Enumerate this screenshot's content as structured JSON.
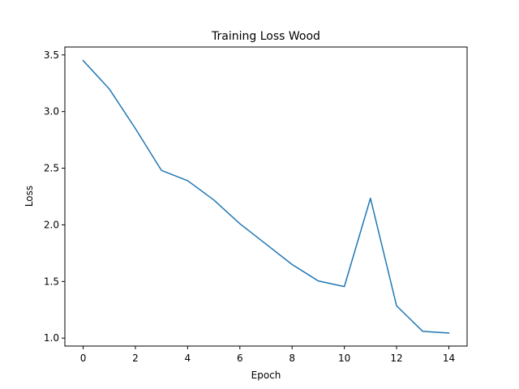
{
  "chart_data": {
    "type": "line",
    "title": "Training Loss Wood",
    "xlabel": "Epoch",
    "ylabel": "Loss",
    "xlim": [
      -0.7,
      14.7
    ],
    "ylim": [
      0.93,
      3.57
    ],
    "x_ticks": [
      0,
      2,
      4,
      6,
      8,
      10,
      12,
      14
    ],
    "y_ticks": [
      1.0,
      1.5,
      2.0,
      2.5,
      3.0,
      3.5
    ],
    "grid": false,
    "line_color": "#1f77b4",
    "series": [
      {
        "x": [
          0,
          1,
          2,
          3,
          4,
          5,
          6,
          7,
          8,
          9,
          10,
          11,
          12,
          13,
          14
        ],
        "values": [
          3.45,
          3.2,
          2.85,
          2.48,
          2.39,
          2.22,
          2.01,
          1.83,
          1.65,
          1.505,
          1.455,
          2.235,
          1.285,
          1.06,
          1.045
        ]
      }
    ]
  }
}
